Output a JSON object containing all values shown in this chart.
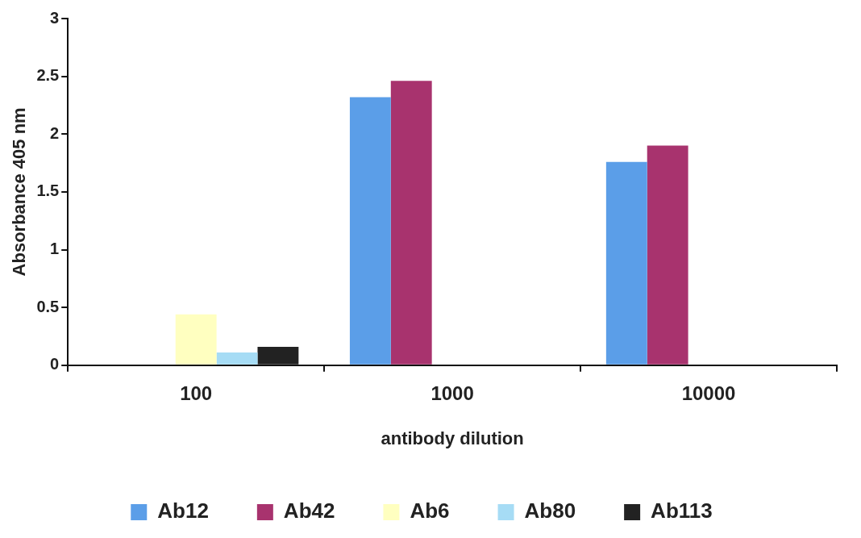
{
  "chart_data": {
    "type": "bar",
    "xlabel": "antibody dilution",
    "ylabel": "Absorbance 405 nm",
    "categories": [
      "100",
      "1000",
      "10000"
    ],
    "series": [
      {
        "name": "Ab12",
        "color": "#5b9ee8",
        "values": [
          null,
          2.32,
          1.76
        ]
      },
      {
        "name": "Ab42",
        "color": "#a8336e",
        "values": [
          null,
          2.46,
          1.9
        ]
      },
      {
        "name": "Ab6",
        "color": "#ffffc0",
        "values": [
          0.44,
          null,
          null
        ]
      },
      {
        "name": "Ab80",
        "color": "#a6dcf5",
        "values": [
          0.11,
          null,
          null
        ]
      },
      {
        "name": "Ab113",
        "color": "#222222",
        "values": [
          0.16,
          null,
          null
        ]
      }
    ],
    "ylim": [
      0,
      3
    ],
    "yticks": [
      0,
      0.5,
      1,
      1.5,
      2,
      2.5,
      3
    ],
    "grid": false,
    "legend": "bottom"
  }
}
